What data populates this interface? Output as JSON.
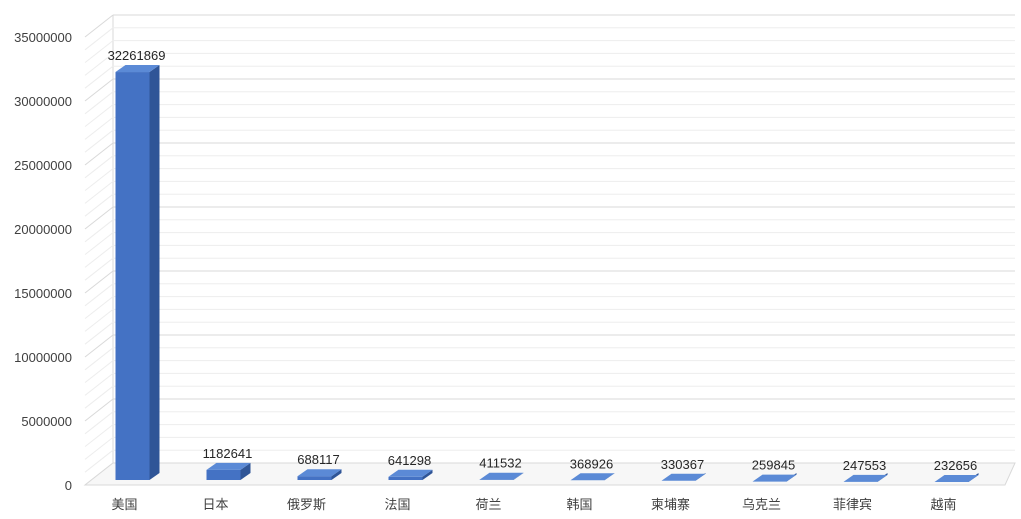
{
  "chart_data": {
    "type": "bar",
    "title": "",
    "xlabel": "",
    "ylabel": "",
    "categories": [
      "美国",
      "日本",
      "俄罗斯",
      "法国",
      "荷兰",
      "韩国",
      "柬埔寨",
      "乌克兰",
      "菲律宾",
      "越南"
    ],
    "values": [
      32261869,
      1182641,
      688117,
      641298,
      411532,
      368926,
      330367,
      259845,
      247553,
      232656
    ],
    "ylim": [
      0,
      35000000
    ],
    "yticks": [
      "0",
      "5000000",
      "10000000",
      "15000000",
      "20000000",
      "25000000",
      "30000000",
      "35000000"
    ],
    "grid": true,
    "legend": "none",
    "colors": {
      "bar_front": "#4472C4",
      "bar_side": "#2F5597",
      "bar_top": "#5B8AD6",
      "grid": "#D9D9D9",
      "axis_text": "#404040"
    }
  }
}
